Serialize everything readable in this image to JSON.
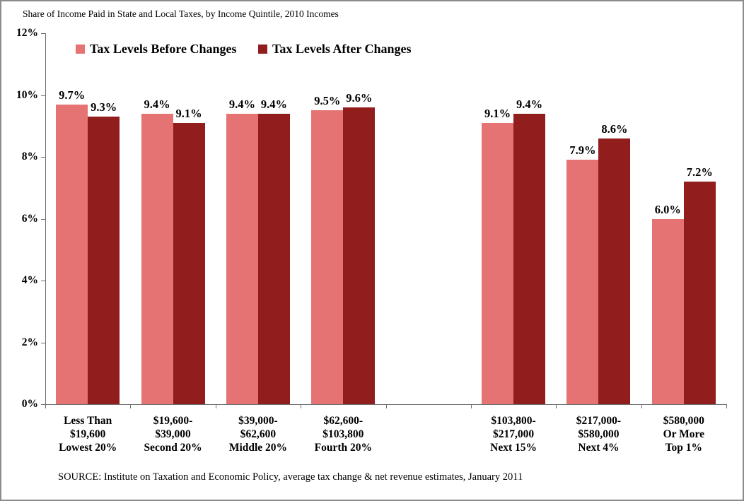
{
  "title": "Share of Income Paid in State and Local Taxes, by Income Quintile, 2010 Incomes",
  "source": "SOURCE: Institute on Taxation and Economic Policy, average tax change & net revenue estimates, January 2011",
  "colors": {
    "before_series": "#E57373",
    "after_series": "#921D1D",
    "axis": "#6E6E6E",
    "frame_border": "#8C8C8C",
    "text": "#000000",
    "background": "#FFFFFF"
  },
  "legend": {
    "items": [
      {
        "label": "Tax Levels Before Changes",
        "color": "#E57373"
      },
      {
        "label": "Tax Levels After Changes",
        "color": "#921D1D"
      }
    ]
  },
  "chart_data": {
    "type": "bar",
    "title": "Share of Income Paid in State and Local Taxes, by Income Quintile, 2010 Incomes",
    "xlabel": "",
    "ylabel": "",
    "ylim": [
      0,
      12
    ],
    "grid": false,
    "legend_position": "top-inside-left",
    "slots": 8,
    "gap_slot_index": 4,
    "categories": [
      {
        "lines": [
          "Less Than",
          "$19,600",
          "Lowest 20%"
        ],
        "slot": 0
      },
      {
        "lines": [
          "$19,600-",
          "$39,000",
          "Second 20%"
        ],
        "slot": 1
      },
      {
        "lines": [
          "$39,000-",
          "$62,600",
          "Middle 20%"
        ],
        "slot": 2
      },
      {
        "lines": [
          "$62,600-",
          "$103,800",
          "Fourth 20%"
        ],
        "slot": 3
      },
      {
        "lines": [
          "$103,800-",
          "$217,000",
          "Next 15%"
        ],
        "slot": 5
      },
      {
        "lines": [
          "$217,000-",
          "$580,000",
          "Next 4%"
        ],
        "slot": 6
      },
      {
        "lines": [
          "$580,000",
          "Or More",
          "Top 1%"
        ],
        "slot": 7
      }
    ],
    "series": [
      {
        "name": "Tax Levels Before Changes",
        "color": "#E57373",
        "values": [
          9.7,
          9.4,
          9.4,
          9.5,
          9.1,
          7.9,
          6.0
        ],
        "labels": [
          "9.7%",
          "9.4%",
          "9.4%",
          "9.5%",
          "9.1%",
          "7.9%",
          "6.0%"
        ]
      },
      {
        "name": "Tax Levels After Changes",
        "color": "#921D1D",
        "values": [
          9.3,
          9.1,
          9.4,
          9.6,
          9.4,
          8.6,
          7.2
        ],
        "labels": [
          "9.3%",
          "9.1%",
          "9.4%",
          "9.6%",
          "9.4%",
          "8.6%",
          "7.2%"
        ]
      }
    ],
    "yticks": [
      {
        "value": 0,
        "label": "0%"
      },
      {
        "value": 2,
        "label": "2%"
      },
      {
        "value": 4,
        "label": "4%"
      },
      {
        "value": 6,
        "label": "6%"
      },
      {
        "value": 8,
        "label": "8%"
      },
      {
        "value": 10,
        "label": "10%"
      },
      {
        "value": 12,
        "label": "12%"
      }
    ]
  }
}
